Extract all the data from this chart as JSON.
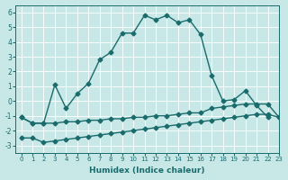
{
  "xlabel": "Humidex (Indice chaleur)",
  "bg_color": "#c8e8e8",
  "line_color": "#1a6b6b",
  "xlim": [
    -0.5,
    23
  ],
  "ylim": [
    -3.5,
    6.5
  ],
  "xticks": [
    0,
    1,
    2,
    3,
    4,
    5,
    6,
    7,
    8,
    9,
    10,
    11,
    12,
    13,
    14,
    15,
    16,
    17,
    18,
    19,
    20,
    21,
    22,
    23
  ],
  "yticks": [
    -3,
    -2,
    -1,
    0,
    1,
    2,
    3,
    4,
    5,
    6
  ],
  "curve_main_x": [
    0,
    1,
    2,
    3,
    4,
    5,
    6,
    7,
    8,
    9,
    10,
    11,
    12,
    13,
    14,
    15,
    16,
    17,
    18,
    19,
    20,
    21,
    22
  ],
  "curve_main_y": [
    -1.1,
    -1.5,
    -1.5,
    1.1,
    -0.5,
    0.5,
    1.2,
    2.8,
    3.3,
    4.6,
    4.6,
    5.8,
    5.5,
    5.8,
    5.3,
    5.5,
    4.5,
    1.7,
    0.0,
    0.1,
    0.7,
    -0.3,
    -1.1
  ],
  "curve_mid_x": [
    0,
    1,
    2,
    3,
    4,
    5,
    6,
    7,
    8,
    9,
    10,
    11,
    12,
    13,
    14,
    15,
    16,
    17,
    18,
    19,
    20,
    21,
    22,
    23
  ],
  "curve_mid_y": [
    -1.1,
    -1.5,
    -1.5,
    -1.5,
    -1.4,
    -1.4,
    -1.3,
    -1.3,
    -1.2,
    -1.2,
    -1.1,
    -1.1,
    -1.0,
    -1.0,
    -0.9,
    -0.8,
    -0.8,
    -0.5,
    -0.4,
    -0.3,
    -0.2,
    -0.2,
    -0.2,
    -1.1
  ],
  "curve_low_x": [
    0,
    1,
    2,
    3,
    4,
    5,
    6,
    7,
    8,
    9,
    10,
    11,
    12,
    13,
    14,
    15,
    16,
    17,
    18,
    19,
    20,
    21,
    22,
    23
  ],
  "curve_low_y": [
    -2.5,
    -2.5,
    -2.8,
    -2.7,
    -2.6,
    -2.5,
    -2.4,
    -2.3,
    -2.2,
    -2.1,
    -2.0,
    -1.9,
    -1.8,
    -1.7,
    -1.6,
    -1.5,
    -1.4,
    -1.3,
    -1.2,
    -1.1,
    -1.0,
    -0.9,
    -0.9,
    -1.1
  ]
}
